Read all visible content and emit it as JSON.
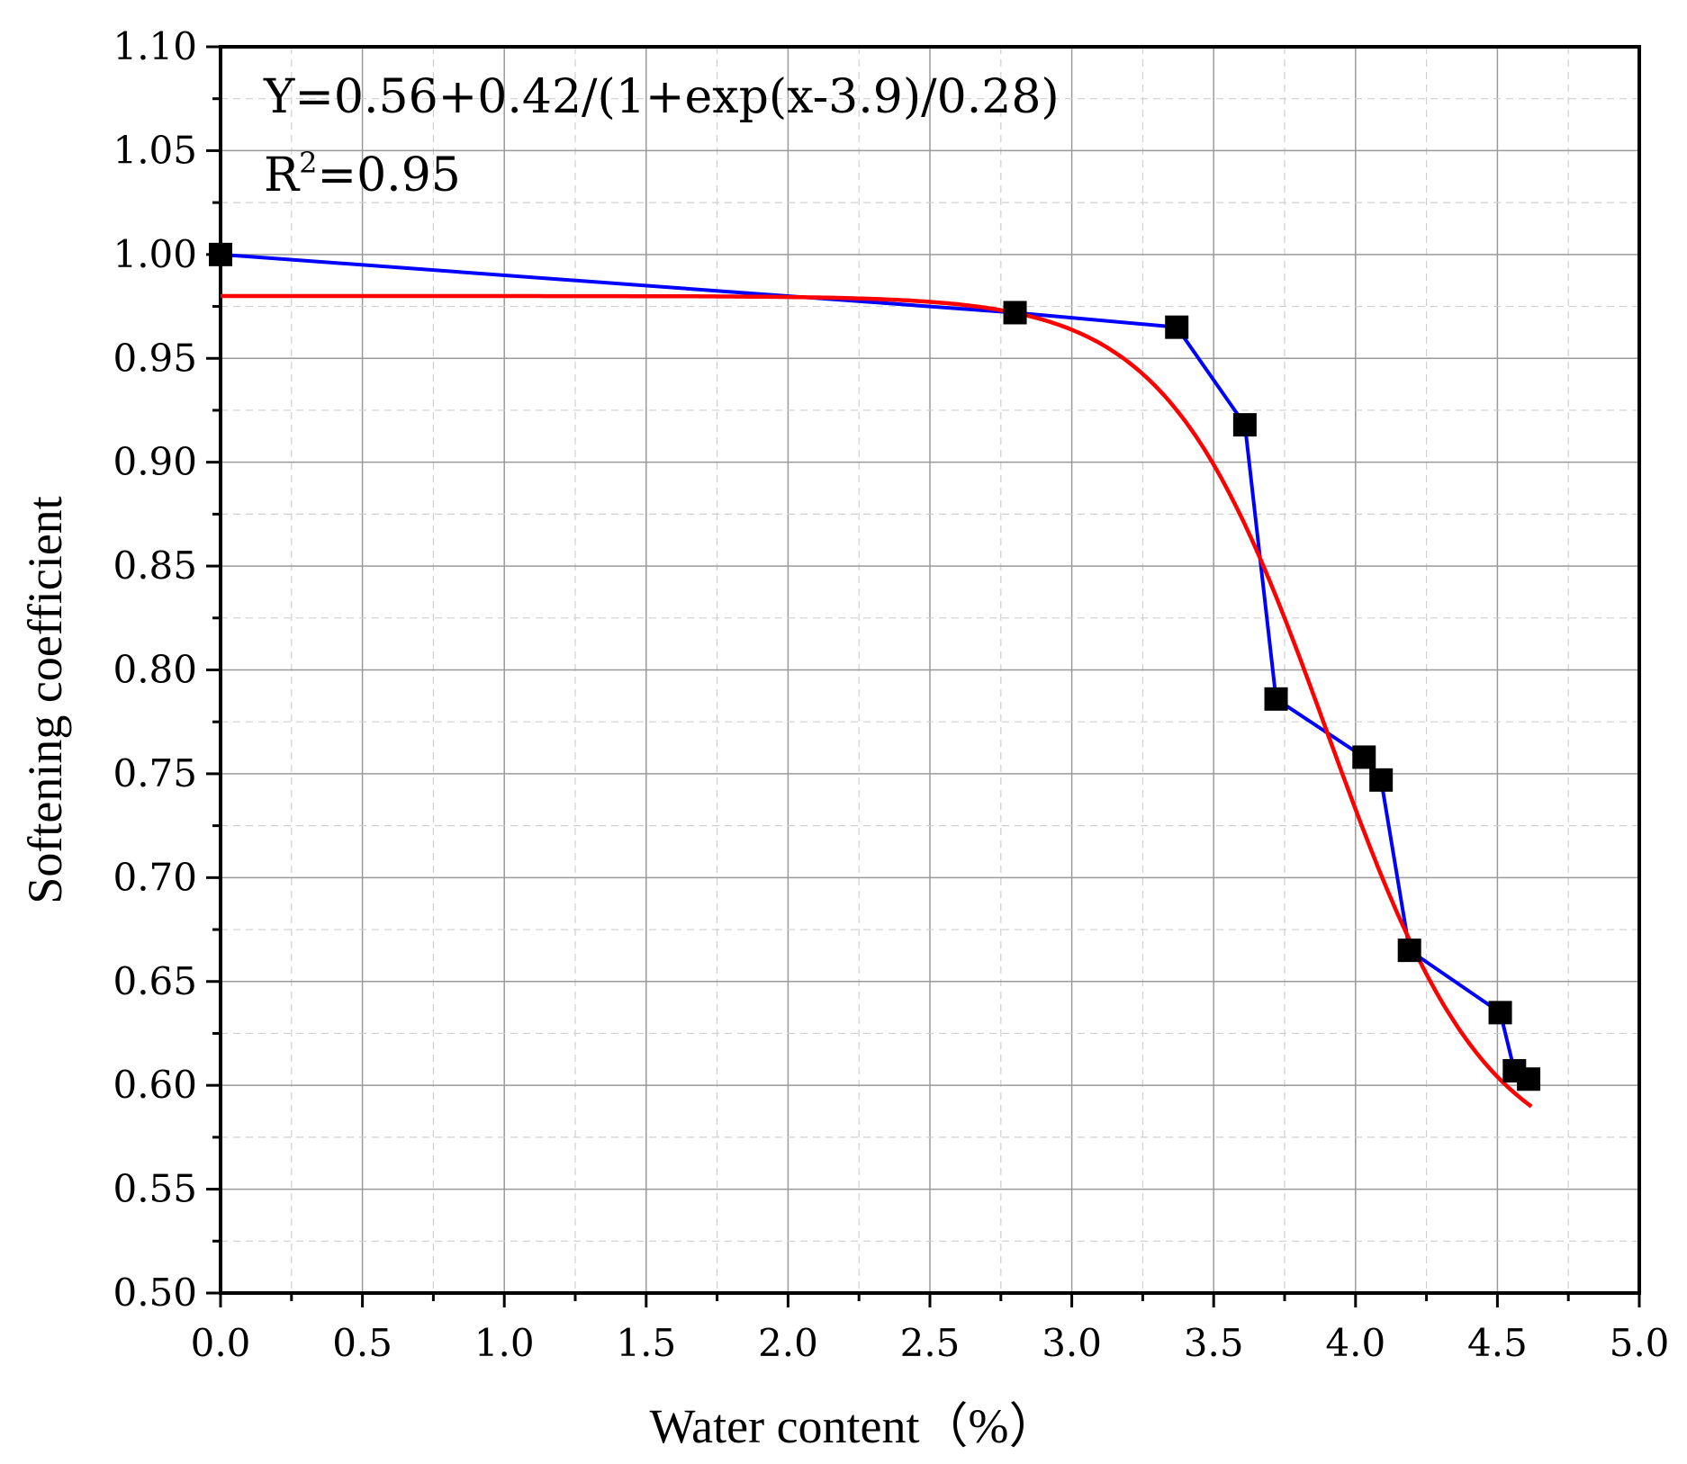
{
  "chart_data": {
    "type": "scatter",
    "xlabel": "Water content（%）",
    "ylabel": "Softening coefficient",
    "xlim": [
      0.0,
      5.0
    ],
    "ylim": [
      0.5,
      1.1
    ],
    "x_ticks": [
      "0.0",
      "0.5",
      "1.0",
      "1.5",
      "2.0",
      "2.5",
      "3.0",
      "3.5",
      "4.0",
      "4.5",
      "5.0"
    ],
    "y_ticks": [
      "0.50",
      "0.55",
      "0.60",
      "0.65",
      "0.70",
      "0.75",
      "0.80",
      "0.85",
      "0.90",
      "0.95",
      "1.00",
      "1.05",
      "1.10"
    ],
    "grid": true,
    "annotations": {
      "equation": "Y=0.56+0.42/(1+exp(x-3.9)/0.28)",
      "r2_prefix": "R",
      "r2_sup": "2",
      "r2_value": "=0.95"
    },
    "series": [
      {
        "kind": "points-with-line",
        "color": "#0000ff",
        "marker_color": "#000000",
        "x": [
          0.0,
          2.8,
          3.37,
          3.61,
          3.72,
          4.03,
          4.09,
          4.19,
          4.51,
          4.56,
          4.61
        ],
        "y": [
          1.0,
          0.972,
          0.965,
          0.918,
          0.786,
          0.758,
          0.747,
          0.665,
          0.635,
          0.607,
          0.603
        ]
      },
      {
        "kind": "fit-curve",
        "color": "#ff0000",
        "formula": {
          "A1": 0.56,
          "A2": 0.42,
          "x0": 3.9,
          "dx": 0.28,
          "A0": 0.998,
          "x_start": 0.0,
          "x_end": 4.62
        }
      }
    ]
  }
}
